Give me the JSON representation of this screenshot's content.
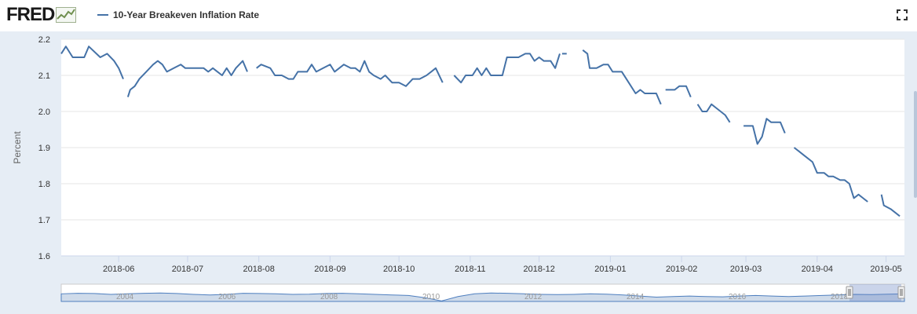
{
  "header": {
    "logo_text": "FRED",
    "series_label": "10-Year Breakeven Inflation Rate",
    "fullscreen_icon": "fullscreen-icon"
  },
  "colors": {
    "series": "#4572a7",
    "plot_bg": "#ffffff",
    "outer_bg": "#e6edf5",
    "grid": "#e6e6e6",
    "navigator_fill": "#cfdbea",
    "navigator_line": "#4f7fbf"
  },
  "chart_data": {
    "type": "line",
    "title": "",
    "xlabel": "",
    "ylabel": "Percent",
    "ylim": [
      1.6,
      2.2
    ],
    "yticks": [
      "1.6",
      "1.7",
      "1.8",
      "1.9",
      "2.0",
      "2.1",
      "2.2"
    ],
    "xlim": [
      "2018-05-07",
      "2019-05-09"
    ],
    "xticks": [
      "2018-06",
      "2018-07",
      "2018-08",
      "2018-09",
      "2018-10",
      "2018-11",
      "2018-12",
      "2019-01",
      "2019-02",
      "2019-03",
      "2019-04",
      "2019-05"
    ],
    "grid": true,
    "legend": "top-left",
    "series": [
      {
        "name": "10-Year Breakeven Inflation Rate",
        "segments": [
          [
            [
              "2018-05-07",
              2.16
            ],
            [
              "2018-05-09",
              2.18
            ],
            [
              "2018-05-11",
              2.16
            ],
            [
              "2018-05-12",
              2.15
            ],
            [
              "2018-05-17",
              2.15
            ],
            [
              "2018-05-19",
              2.18
            ],
            [
              "2018-05-24",
              2.15
            ],
            [
              "2018-05-27",
              2.16
            ],
            [
              "2018-05-30",
              2.14
            ],
            [
              "2018-06-01",
              2.12
            ],
            [
              "2018-06-03",
              2.09
            ]
          ],
          [
            [
              "2018-06-05",
              2.04
            ],
            [
              "2018-06-06",
              2.06
            ],
            [
              "2018-06-08",
              2.07
            ],
            [
              "2018-06-10",
              2.09
            ],
            [
              "2018-06-13",
              2.11
            ],
            [
              "2018-06-16",
              2.13
            ],
            [
              "2018-06-18",
              2.14
            ],
            [
              "2018-06-20",
              2.13
            ],
            [
              "2018-06-22",
              2.11
            ],
            [
              "2018-06-25",
              2.12
            ],
            [
              "2018-06-28",
              2.13
            ],
            [
              "2018-06-30",
              2.12
            ],
            [
              "2018-07-03",
              2.12
            ],
            [
              "2018-07-08",
              2.12
            ],
            [
              "2018-07-10",
              2.11
            ],
            [
              "2018-07-12",
              2.12
            ],
            [
              "2018-07-14",
              2.11
            ],
            [
              "2018-07-16",
              2.1
            ],
            [
              "2018-07-18",
              2.12
            ],
            [
              "2018-07-20",
              2.1
            ],
            [
              "2018-07-22",
              2.12
            ],
            [
              "2018-07-25",
              2.14
            ],
            [
              "2018-07-27",
              2.11
            ]
          ],
          [
            [
              "2018-07-31",
              2.12
            ],
            [
              "2018-08-02",
              2.13
            ],
            [
              "2018-08-06",
              2.12
            ],
            [
              "2018-08-08",
              2.1
            ],
            [
              "2018-08-11",
              2.1
            ],
            [
              "2018-08-14",
              2.09
            ],
            [
              "2018-08-16",
              2.09
            ],
            [
              "2018-08-18",
              2.11
            ],
            [
              "2018-08-22",
              2.11
            ],
            [
              "2018-08-24",
              2.13
            ],
            [
              "2018-08-26",
              2.11
            ],
            [
              "2018-08-29",
              2.12
            ],
            [
              "2018-09-01",
              2.13
            ],
            [
              "2018-09-03",
              2.11
            ],
            [
              "2018-09-05",
              2.12
            ],
            [
              "2018-09-07",
              2.13
            ],
            [
              "2018-09-10",
              2.12
            ],
            [
              "2018-09-12",
              2.12
            ],
            [
              "2018-09-14",
              2.11
            ],
            [
              "2018-09-16",
              2.14
            ],
            [
              "2018-09-18",
              2.11
            ],
            [
              "2018-09-20",
              2.1
            ],
            [
              "2018-09-23",
              2.09
            ],
            [
              "2018-09-25",
              2.1
            ],
            [
              "2018-09-28",
              2.08
            ],
            [
              "2018-10-01",
              2.08
            ],
            [
              "2018-10-04",
              2.07
            ],
            [
              "2018-10-07",
              2.09
            ],
            [
              "2018-10-10",
              2.09
            ],
            [
              "2018-10-13",
              2.1
            ],
            [
              "2018-10-15",
              2.11
            ],
            [
              "2018-10-17",
              2.12
            ],
            [
              "2018-10-20",
              2.08
            ]
          ],
          [
            [
              "2018-10-25",
              2.1
            ],
            [
              "2018-10-28",
              2.08
            ],
            [
              "2018-10-30",
              2.1
            ],
            [
              "2018-11-02",
              2.1
            ],
            [
              "2018-11-04",
              2.12
            ],
            [
              "2018-11-06",
              2.1
            ],
            [
              "2018-11-08",
              2.12
            ],
            [
              "2018-11-10",
              2.1
            ],
            [
              "2018-11-15",
              2.1
            ],
            [
              "2018-11-17",
              2.15
            ],
            [
              "2018-11-22",
              2.15
            ],
            [
              "2018-11-25",
              2.16
            ],
            [
              "2018-11-27",
              2.16
            ],
            [
              "2018-11-29",
              2.14
            ],
            [
              "2018-12-01",
              2.15
            ],
            [
              "2018-12-03",
              2.14
            ],
            [
              "2018-12-06",
              2.14
            ],
            [
              "2018-12-08",
              2.12
            ],
            [
              "2018-12-10",
              2.16
            ]
          ],
          [
            [
              "2018-12-11",
              2.16
            ],
            [
              "2018-12-13",
              2.16
            ]
          ],
          [
            [
              "2018-12-20",
              2.17
            ],
            [
              "2018-12-22",
              2.16
            ],
            [
              "2018-12-23",
              2.12
            ],
            [
              "2018-12-26",
              2.12
            ],
            [
              "2018-12-29",
              2.13
            ],
            [
              "2018-12-31",
              2.13
            ],
            [
              "2019-01-02",
              2.11
            ],
            [
              "2019-01-04",
              2.11
            ],
            [
              "2019-01-06",
              2.11
            ],
            [
              "2019-01-09",
              2.08
            ],
            [
              "2019-01-12",
              2.05
            ],
            [
              "2019-01-14",
              2.06
            ],
            [
              "2019-01-16",
              2.05
            ],
            [
              "2019-01-19",
              2.05
            ],
            [
              "2019-01-21",
              2.05
            ],
            [
              "2019-01-23",
              2.02
            ]
          ],
          [
            [
              "2019-01-25",
              2.06
            ],
            [
              "2019-01-29",
              2.06
            ],
            [
              "2019-01-31",
              2.07
            ],
            [
              "2019-02-03",
              2.07
            ],
            [
              "2019-02-05",
              2.04
            ]
          ],
          [
            [
              "2019-02-08",
              2.02
            ],
            [
              "2019-02-10",
              2.0
            ],
            [
              "2019-02-12",
              2.0
            ],
            [
              "2019-02-14",
              2.02
            ],
            [
              "2019-02-16",
              2.01
            ],
            [
              "2019-02-18",
              2.0
            ],
            [
              "2019-02-20",
              1.99
            ],
            [
              "2019-02-22",
              1.97
            ]
          ],
          [
            [
              "2019-02-28",
              1.96
            ],
            [
              "2019-03-04",
              1.96
            ],
            [
              "2019-03-06",
              1.91
            ],
            [
              "2019-03-08",
              1.93
            ],
            [
              "2019-03-10",
              1.98
            ],
            [
              "2019-03-12",
              1.97
            ],
            [
              "2019-03-16",
              1.97
            ],
            [
              "2019-03-18",
              1.94
            ]
          ],
          [
            [
              "2019-03-22",
              1.9
            ],
            [
              "2019-03-24",
              1.89
            ],
            [
              "2019-03-26",
              1.88
            ],
            [
              "2019-03-28",
              1.87
            ],
            [
              "2019-03-30",
              1.86
            ],
            [
              "2019-04-01",
              1.83
            ],
            [
              "2019-04-04",
              1.83
            ],
            [
              "2019-04-06",
              1.82
            ],
            [
              "2019-04-08",
              1.82
            ],
            [
              "2019-04-11",
              1.81
            ],
            [
              "2019-04-13",
              1.81
            ],
            [
              "2019-04-15",
              1.8
            ],
            [
              "2019-04-17",
              1.76
            ],
            [
              "2019-04-19",
              1.77
            ],
            [
              "2019-04-21",
              1.76
            ],
            [
              "2019-04-23",
              1.75
            ]
          ],
          [
            [
              "2019-04-29",
              1.77
            ],
            [
              "2019-04-30",
              1.74
            ],
            [
              "2019-05-03",
              1.73
            ],
            [
              "2019-05-05",
              1.72
            ],
            [
              "2019-05-07",
              1.71
            ]
          ]
        ]
      }
    ]
  },
  "navigator": {
    "year_labels": [
      "2004",
      "2006",
      "2008",
      "2010",
      "2012",
      "2014",
      "2016",
      "2018"
    ]
  }
}
